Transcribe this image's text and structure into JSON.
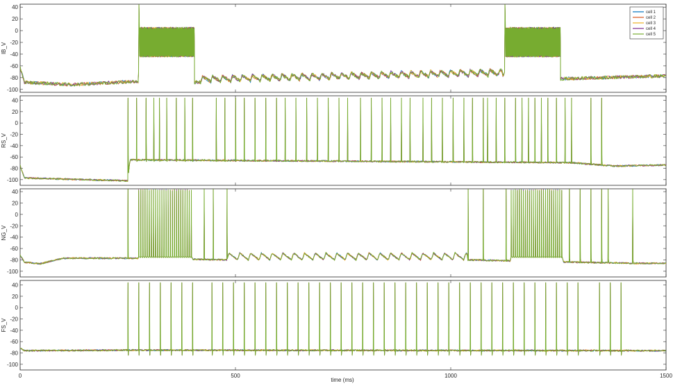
{
  "figure": {
    "xlabel": "time (ms)"
  },
  "chart_data": [
    {
      "type": "line",
      "ylabel": "IB_V",
      "xlim": [
        0,
        1500
      ],
      "ylim": [
        -105,
        45
      ],
      "yticks": [
        -100,
        -80,
        -60,
        -40,
        -20,
        0,
        20,
        40
      ],
      "xticks": [
        0,
        500,
        1000,
        1500
      ],
      "show_xtick_labels": false,
      "legend": {
        "placement": "top-right",
        "entries": [
          "cell 1",
          "cell 2",
          "cell 3",
          "cell 4",
          "cell 5"
        ]
      },
      "series": [
        {
          "name": "cell 1",
          "color": "#0072bd"
        },
        {
          "name": "cell 2",
          "color": "#d95319"
        },
        {
          "name": "cell 3",
          "color": "#edb120"
        },
        {
          "name": "cell 4",
          "color": "#7e2f8e"
        },
        {
          "name": "cell 5",
          "color": "#77ac30"
        }
      ],
      "bursts": [
        {
          "start": 275,
          "end": 405,
          "high": 2,
          "low": -45,
          "peak": 44
        },
        {
          "start": 1125,
          "end": 1255,
          "high": 2,
          "low": -45,
          "peak": 44
        }
      ],
      "baseline": [
        [
          0,
          -62
        ],
        [
          10,
          -88
        ],
        [
          120,
          -92
        ],
        [
          250,
          -87
        ],
        [
          405,
          -88
        ],
        [
          700,
          -83
        ],
        [
          1125,
          -76
        ],
        [
          1255,
          -82
        ],
        [
          1500,
          -77
        ]
      ]
    },
    {
      "type": "line",
      "ylabel": "RS_V",
      "xlim": [
        0,
        1500
      ],
      "ylim": [
        -110,
        48
      ],
      "yticks": [
        -100,
        -80,
        -60,
        -40,
        -20,
        0,
        20,
        40
      ],
      "xticks": [
        0,
        500,
        1000,
        1500
      ],
      "show_xtick_labels": false,
      "series": [
        {
          "name": "cell 1",
          "color": "#0072bd"
        },
        {
          "name": "cell 2",
          "color": "#d95319"
        },
        {
          "name": "cell 3",
          "color": "#edb120"
        },
        {
          "name": "cell 4",
          "color": "#7e2f8e"
        },
        {
          "name": "cell 5",
          "color": "#77ac30"
        }
      ],
      "spike_times": [
        250,
        270,
        292,
        310,
        323,
        340,
        362,
        382,
        400,
        455,
        475,
        500,
        520,
        545,
        570,
        595,
        615,
        640,
        665,
        690,
        715,
        740,
        760,
        790,
        815,
        840,
        860,
        885,
        905,
        935,
        955,
        980,
        1005,
        1030,
        1050,
        1075,
        1085,
        1105,
        1125,
        1150,
        1165,
        1180,
        1195,
        1210,
        1225,
        1245,
        1265,
        1280,
        1325,
        1350
      ],
      "spike_peak": 44,
      "trough": -68,
      "baseline": [
        [
          0,
          -75
        ],
        [
          10,
          -97
        ],
        [
          250,
          -102
        ],
        [
          255,
          -65
        ],
        [
          1280,
          -70
        ],
        [
          1380,
          -76
        ],
        [
          1500,
          -74
        ]
      ]
    },
    {
      "type": "line",
      "ylabel": "NG_V",
      "xlim": [
        0,
        1500
      ],
      "ylim": [
        -110,
        45
      ],
      "yticks": [
        -100,
        -80,
        -60,
        -40,
        -20,
        0,
        20,
        40
      ],
      "xticks": [
        0,
        500,
        1000,
        1500
      ],
      "show_xtick_labels": false,
      "series": [
        {
          "name": "cell 1",
          "color": "#0072bd"
        },
        {
          "name": "cell 2",
          "color": "#d95319"
        },
        {
          "name": "cell 3",
          "color": "#edb120"
        },
        {
          "name": "cell 4",
          "color": "#7e2f8e"
        },
        {
          "name": "cell 5",
          "color": "#77ac30"
        }
      ],
      "bursts": [
        {
          "start": 275,
          "end": 402,
          "count": 26,
          "peak": 44,
          "low": -76
        },
        {
          "start": 1140,
          "end": 1262,
          "count": 26,
          "peak": 44,
          "low": -76
        }
      ],
      "spike_times": [
        250,
        427,
        448,
        480,
        1040,
        1075,
        1128,
        1275,
        1300,
        1325,
        1350,
        1365,
        1422
      ],
      "spike_peak": 44,
      "baseline": [
        [
          0,
          -72
        ],
        [
          10,
          -84
        ],
        [
          45,
          -87
        ],
        [
          100,
          -77
        ],
        [
          250,
          -77
        ],
        [
          480,
          -80
        ],
        [
          1040,
          -80
        ],
        [
          1420,
          -86
        ],
        [
          1500,
          -86
        ]
      ]
    },
    {
      "type": "line",
      "ylabel": "FS_V",
      "xlim": [
        0,
        1500
      ],
      "ylim": [
        -110,
        48
      ],
      "yticks": [
        -100,
        -80,
        -60,
        -40,
        -20,
        0,
        20,
        40
      ],
      "xticks": [
        0,
        500,
        1000,
        1500
      ],
      "show_xtick_labels": true,
      "series": [
        {
          "name": "cell 1",
          "color": "#0072bd"
        },
        {
          "name": "cell 2",
          "color": "#d95319"
        },
        {
          "name": "cell 3",
          "color": "#edb120"
        },
        {
          "name": "cell 4",
          "color": "#7e2f8e"
        },
        {
          "name": "cell 5",
          "color": "#77ac30"
        }
      ],
      "spike_times": [
        250,
        275,
        300,
        325,
        350,
        375,
        400,
        445,
        470,
        495,
        520,
        545,
        570,
        595,
        620,
        645,
        670,
        695,
        720,
        745,
        770,
        795,
        820,
        845,
        870,
        895,
        920,
        945,
        970,
        995,
        1020,
        1045,
        1070,
        1095,
        1120,
        1145,
        1170,
        1195,
        1220,
        1245,
        1270,
        1295,
        1345,
        1370,
        1395
      ],
      "spike_peak": 44,
      "trough": -84,
      "baseline": [
        [
          0,
          -72
        ],
        [
          10,
          -76
        ],
        [
          250,
          -75
        ],
        [
          1500,
          -76
        ]
      ]
    }
  ]
}
